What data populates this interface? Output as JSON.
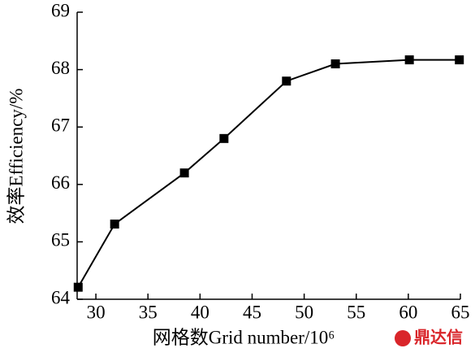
{
  "chart_data": {
    "type": "line",
    "x_label": "网格数Grid number/10⁶",
    "y_label": "效率Efficiency/%",
    "watermark": "鼎达信",
    "x": [
      28.3,
      31.8,
      38.5,
      42.3,
      48.3,
      53.0,
      60.1,
      64.9
    ],
    "series": [
      {
        "color": "#000000",
        "values": [
          64.21,
          65.31,
          66.2,
          66.8,
          67.8,
          68.1,
          68.17,
          68.17
        ]
      }
    ],
    "xlim": [
      28.2,
      65
    ],
    "xticks": [
      30,
      35,
      40,
      45,
      50,
      55,
      60,
      65
    ],
    "ylim": [
      64,
      69
    ],
    "yticks": [
      64,
      65,
      66,
      67,
      68,
      69
    ],
    "grid": false
  }
}
